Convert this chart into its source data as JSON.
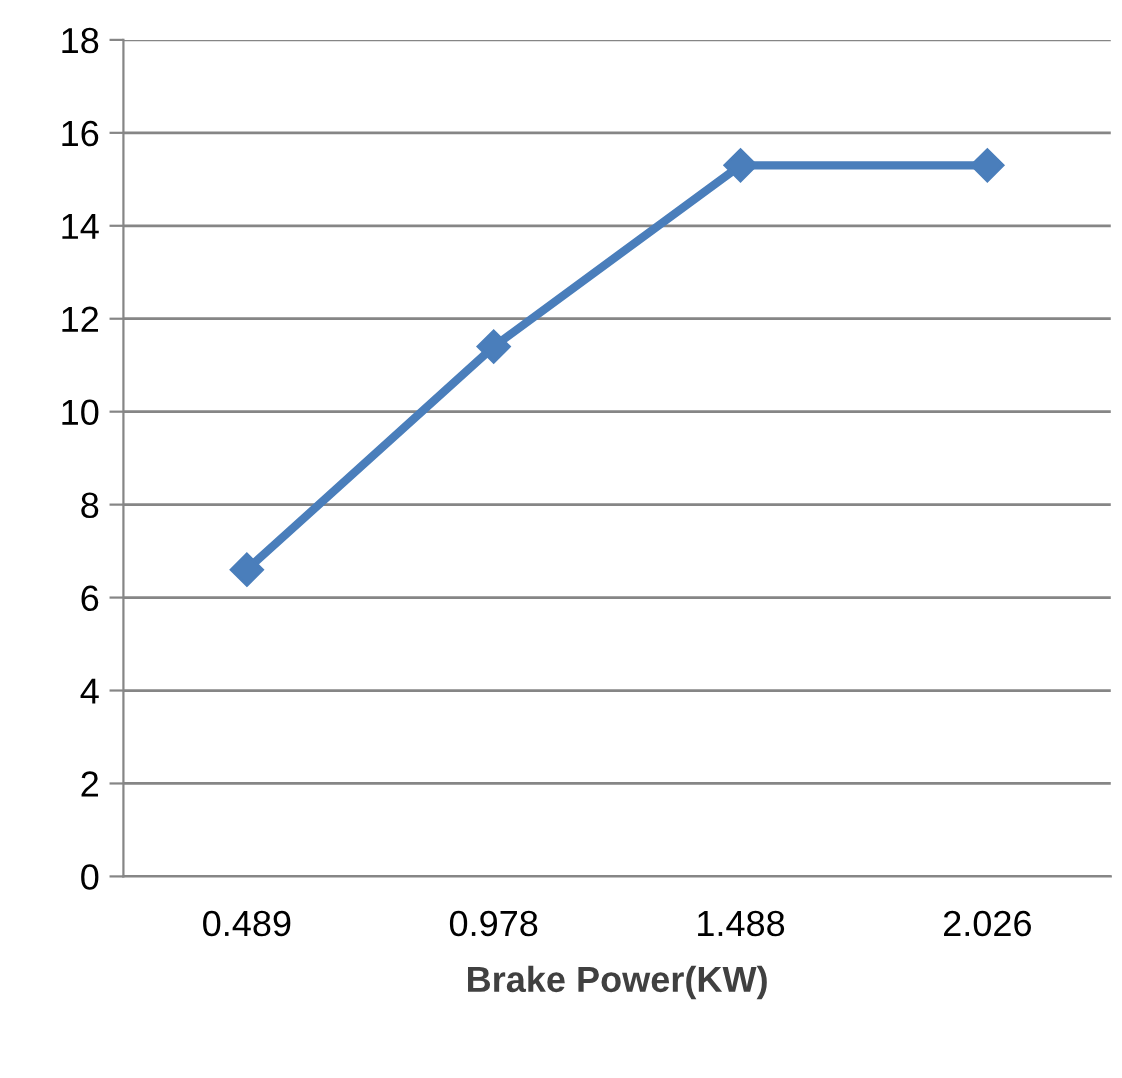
{
  "chart_data": {
    "type": "line",
    "xlabel": "Brake Power(KW)",
    "categories": [
      "0.489",
      "0.978",
      "1.488",
      "2.026"
    ],
    "series": [
      {
        "color": "#4a7ebb",
        "values": [
          6.6,
          11.4,
          15.3,
          15.3
        ]
      }
    ],
    "ylim": [
      0,
      18
    ],
    "yticks": [
      0,
      2,
      4,
      6,
      8,
      10,
      12,
      14,
      16,
      18
    ],
    "grid": "y",
    "marker": "diamond",
    "line_style": "solid",
    "legend": false
  }
}
